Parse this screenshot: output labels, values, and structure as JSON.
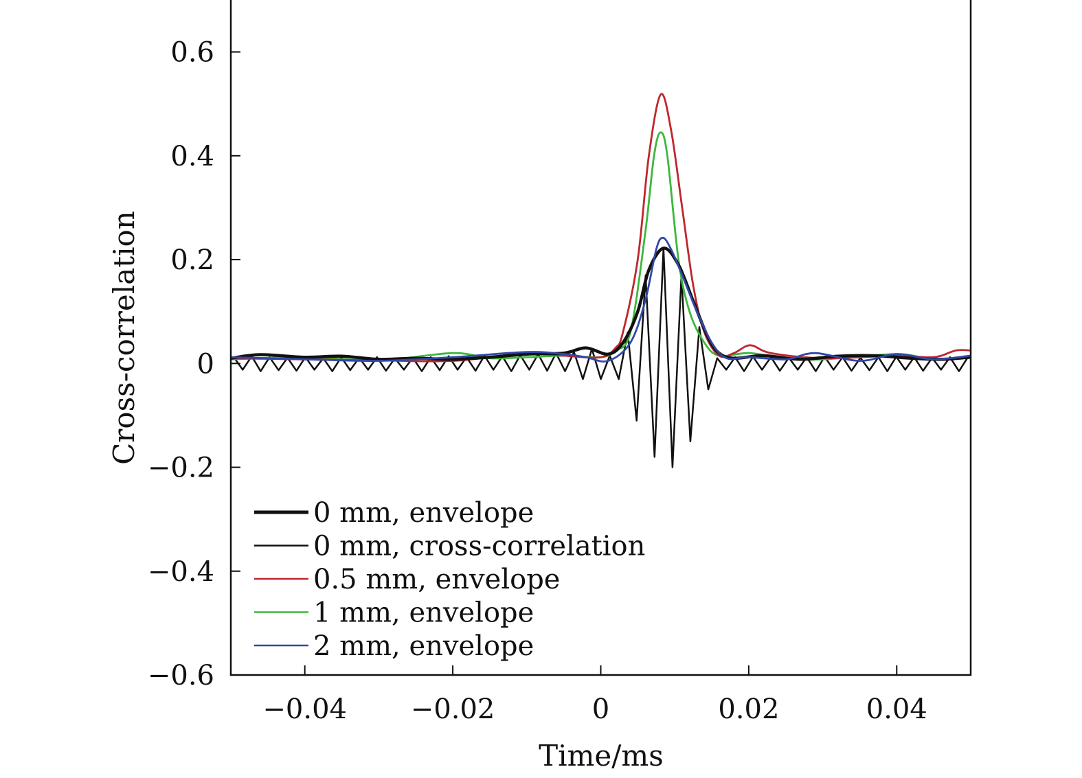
{
  "chart_data": {
    "type": "line",
    "xlabel": "Time/ms",
    "ylabel": "Cross-correlation",
    "xlim": [
      -0.05,
      0.05
    ],
    "ylim": [
      -0.6,
      0.7
    ],
    "xticks": [
      -0.04,
      -0.02,
      0,
      0.02,
      0.04
    ],
    "xtick_labels": [
      "−0.04",
      "−0.02",
      "0",
      "0.02",
      "0.04"
    ],
    "yticks": [
      0.6,
      0.4,
      0.2,
      0,
      -0.2,
      -0.4,
      -0.6
    ],
    "ytick_labels": [
      "0.6",
      "0.4",
      "0.2",
      "0",
      "−0.2",
      "−0.4",
      "−0.6"
    ],
    "grid": false,
    "legend_position": "bottom-left",
    "series": [
      {
        "name": "0 mm, envelope",
        "color": "#111111",
        "width": "thick",
        "points": [
          [
            -0.05,
            0.01
          ],
          [
            -0.046,
            0.017
          ],
          [
            -0.04,
            0.012
          ],
          [
            -0.035,
            0.014
          ],
          [
            -0.03,
            0.008
          ],
          [
            -0.025,
            0.01
          ],
          [
            -0.02,
            0.008
          ],
          [
            -0.015,
            0.012
          ],
          [
            -0.01,
            0.018
          ],
          [
            -0.005,
            0.02
          ],
          [
            -0.002,
            0.03
          ],
          [
            0.001,
            0.018
          ],
          [
            0.003,
            0.04
          ],
          [
            0.005,
            0.1
          ],
          [
            0.0065,
            0.18
          ],
          [
            0.0085,
            0.222
          ],
          [
            0.0105,
            0.19
          ],
          [
            0.0125,
            0.12
          ],
          [
            0.0145,
            0.05
          ],
          [
            0.016,
            0.02
          ],
          [
            0.018,
            0.01
          ],
          [
            0.022,
            0.015
          ],
          [
            0.027,
            0.008
          ],
          [
            0.032,
            0.014
          ],
          [
            0.037,
            0.015
          ],
          [
            0.042,
            0.01
          ],
          [
            0.046,
            0.008
          ],
          [
            0.05,
            0.012
          ]
        ]
      },
      {
        "name": "0 mm, cross-correlation",
        "color": "#111111",
        "width": "thin",
        "x0": -0.0496,
        "dx": 0.00121,
        "values": [
          0.012,
          -0.012,
          0.014,
          -0.015,
          0.012,
          -0.013,
          0.011,
          -0.014,
          0.012,
          -0.012,
          0.01,
          -0.015,
          0.012,
          -0.013,
          0.011,
          -0.012,
          0.012,
          -0.014,
          0.01,
          -0.012,
          0.011,
          -0.015,
          0.012,
          -0.013,
          0.014,
          -0.012,
          0.012,
          -0.014,
          0.015,
          -0.012,
          0.014,
          -0.015,
          0.016,
          -0.012,
          0.018,
          -0.014,
          0.02,
          -0.015,
          0.022,
          -0.03,
          0.028,
          -0.03,
          0.015,
          -0.03,
          0.06,
          -0.11,
          0.17,
          -0.18,
          0.222,
          -0.2,
          0.17,
          -0.15,
          0.07,
          -0.05,
          0.01,
          -0.012,
          0.012,
          -0.015,
          0.013,
          -0.012,
          0.012,
          -0.014,
          0.011,
          -0.012,
          0.012,
          -0.015,
          0.013,
          -0.012,
          0.012,
          -0.014,
          0.011,
          -0.013,
          0.012,
          -0.015,
          0.013,
          -0.012,
          0.012,
          -0.014,
          0.011,
          -0.012,
          0.012,
          -0.015,
          0.012
        ]
      },
      {
        "name": "0.5 mm, envelope",
        "color": "#c0262d",
        "width": "thin",
        "points": [
          [
            -0.05,
            0.01
          ],
          [
            -0.04,
            0.008
          ],
          [
            -0.03,
            0.006
          ],
          [
            -0.02,
            0.005
          ],
          [
            -0.01,
            0.02
          ],
          [
            -0.005,
            0.015
          ],
          [
            0,
            0.012
          ],
          [
            0.002,
            0.03
          ],
          [
            0.003,
            0.06
          ],
          [
            0.005,
            0.2
          ],
          [
            0.0065,
            0.4
          ],
          [
            0.0081,
            0.518
          ],
          [
            0.0095,
            0.45
          ],
          [
            0.011,
            0.3
          ],
          [
            0.0125,
            0.15
          ],
          [
            0.014,
            0.06
          ],
          [
            0.016,
            0.015
          ],
          [
            0.018,
            0.02
          ],
          [
            0.0202,
            0.035
          ],
          [
            0.023,
            0.02
          ],
          [
            0.03,
            0.01
          ],
          [
            0.04,
            0.015
          ],
          [
            0.045,
            0.012
          ],
          [
            0.048,
            0.025
          ],
          [
            0.05,
            0.025
          ]
        ]
      },
      {
        "name": "1 mm, envelope",
        "color": "#3cb83c",
        "width": "thin",
        "points": [
          [
            -0.05,
            0.008
          ],
          [
            -0.04,
            0.012
          ],
          [
            -0.03,
            0.006
          ],
          [
            -0.02,
            0.02
          ],
          [
            -0.015,
            0.01
          ],
          [
            -0.01,
            0.012
          ],
          [
            -0.005,
            0.015
          ],
          [
            0,
            0.012
          ],
          [
            0.002,
            0.025
          ],
          [
            0.004,
            0.06
          ],
          [
            0.006,
            0.25
          ],
          [
            0.0072,
            0.4
          ],
          [
            0.0081,
            0.445
          ],
          [
            0.009,
            0.4
          ],
          [
            0.0105,
            0.2
          ],
          [
            0.012,
            0.1
          ],
          [
            0.014,
            0.04
          ],
          [
            0.016,
            0.015
          ],
          [
            0.02,
            0.02
          ],
          [
            0.025,
            0.01
          ],
          [
            0.03,
            0.008
          ],
          [
            0.04,
            0.018
          ],
          [
            0.045,
            0.008
          ],
          [
            0.05,
            0.015
          ]
        ]
      },
      {
        "name": "2 mm, envelope",
        "color": "#3048a8",
        "width": "thin",
        "points": [
          [
            -0.05,
            0.012
          ],
          [
            -0.04,
            0.008
          ],
          [
            -0.03,
            0.005
          ],
          [
            -0.02,
            0.012
          ],
          [
            -0.01,
            0.022
          ],
          [
            -0.005,
            0.018
          ],
          [
            -0.002,
            0.012
          ],
          [
            0.001,
            0.005
          ],
          [
            0.004,
            0.04
          ],
          [
            0.006,
            0.12
          ],
          [
            0.0075,
            0.22
          ],
          [
            0.0084,
            0.242
          ],
          [
            0.0095,
            0.22
          ],
          [
            0.011,
            0.17
          ],
          [
            0.013,
            0.1
          ],
          [
            0.015,
            0.04
          ],
          [
            0.017,
            0.01
          ],
          [
            0.02,
            0.012
          ],
          [
            0.025,
            0.008
          ],
          [
            0.029,
            0.02
          ],
          [
            0.035,
            0.005
          ],
          [
            0.04,
            0.018
          ],
          [
            0.045,
            0.008
          ],
          [
            0.05,
            0.015
          ]
        ]
      }
    ]
  }
}
